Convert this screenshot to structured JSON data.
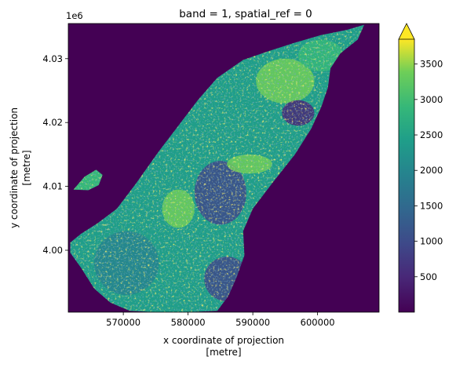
{
  "chart_data": {
    "type": "heatmap",
    "title": "band = 1, spatial_ref = 0",
    "xlabel": [
      "x coordinate of projection",
      "[metre]"
    ],
    "ylabel": [
      "y coordinate of projection",
      "[metre]"
    ],
    "x_range": [
      561500,
      609500
    ],
    "y_range": [
      3990300,
      4035500
    ],
    "x_ticks": [
      570000,
      580000,
      590000,
      600000
    ],
    "x_tick_labels": [
      "570000",
      "580000",
      "590000",
      "600000"
    ],
    "y_ticks": [
      4000000,
      4010000,
      4020000,
      4030000
    ],
    "y_tick_labels": [
      "4.00",
      "4.01",
      "4.02",
      "4.03"
    ],
    "y_offset_label": "1e6",
    "colorbar": {
      "colormap": "viridis",
      "range": [
        0,
        3850
      ],
      "extend": "max",
      "ticks": [
        500,
        1000,
        1500,
        2000,
        2500,
        3000,
        3500
      ],
      "tick_labels": [
        "500",
        "1000",
        "1500",
        "2000",
        "2500",
        "3000",
        "3500"
      ]
    },
    "background_value": 0,
    "island_outline": [
      [
        561800,
        4001200
      ],
      [
        563500,
        4002600
      ],
      [
        566000,
        4004200
      ],
      [
        569000,
        4006500
      ],
      [
        572000,
        4010500
      ],
      [
        575500,
        4015500
      ],
      [
        578500,
        4019500
      ],
      [
        581500,
        4023500
      ],
      [
        584500,
        4027000
      ],
      [
        588500,
        4029800
      ],
      [
        592500,
        4031200
      ],
      [
        596500,
        4032500
      ],
      [
        600500,
        4033700
      ],
      [
        604500,
        4034500
      ],
      [
        607200,
        4035300
      ],
      [
        606200,
        4033000
      ],
      [
        603500,
        4030800
      ],
      [
        602000,
        4028500
      ],
      [
        601600,
        4025500
      ],
      [
        600600,
        4022500
      ],
      [
        599000,
        4019000
      ],
      [
        596500,
        4015000
      ],
      [
        593000,
        4010500
      ],
      [
        590000,
        4006500
      ],
      [
        588500,
        4003000
      ],
      [
        588700,
        3999200
      ],
      [
        587500,
        3995800
      ],
      [
        586200,
        3992800
      ],
      [
        584500,
        3990500
      ],
      [
        579500,
        3990300
      ],
      [
        575000,
        3990300
      ],
      [
        571000,
        3990500
      ],
      [
        568000,
        3991800
      ],
      [
        565500,
        3994000
      ],
      [
        563500,
        3997200
      ],
      [
        561800,
        3999600
      ]
    ],
    "islet": [
      [
        562300,
        4009500
      ],
      [
        564000,
        4011500
      ],
      [
        565800,
        4012600
      ],
      [
        566800,
        4011800
      ],
      [
        566200,
        4010200
      ],
      [
        564600,
        4009400
      ]
    ],
    "data_zones": [
      {
        "x": [
          595000,
          4026500
        ],
        "rx": 4500,
        "ry": 3500,
        "value": 3500
      },
      {
        "x": [
          578500,
          4006500
        ],
        "rx": 2500,
        "ry": 3000,
        "value": 3600
      },
      {
        "x": [
          585000,
          4009000
        ],
        "rx": 4000,
        "ry": 5000,
        "value": 1100
      },
      {
        "x": [
          586000,
          3995500
        ],
        "rx": 3500,
        "ry": 3500,
        "value": 900
      },
      {
        "x": [
          570500,
          3998000
        ],
        "rx": 5000,
        "ry": 5000,
        "value": 2000
      },
      {
        "x": [
          597000,
          4021500
        ],
        "rx": 2500,
        "ry": 2000,
        "value": 500
      },
      {
        "x": [
          589500,
          4013500
        ],
        "rx": 3500,
        "ry": 1500,
        "value": 3500
      },
      {
        "x": [
          600500,
          4030500
        ],
        "rx": 3500,
        "ry": 2500,
        "value": 2700
      }
    ]
  }
}
